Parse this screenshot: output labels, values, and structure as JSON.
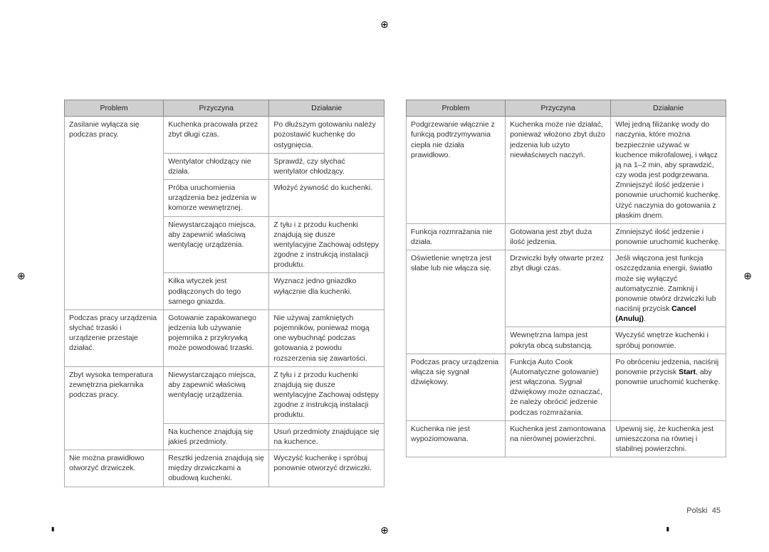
{
  "crop_glyph": "⊕",
  "headers": {
    "c1": "Problem",
    "c2": "Przyczyna",
    "c3": "Działanie"
  },
  "left_table": [
    {
      "problem": "Zasilanie wyłącza się podczas pracy.",
      "rows": [
        {
          "cause": "Kuchenka pracowała przez zbyt długi czas.",
          "action": "Po dłuższym gotowaniu należy pozostawić kuchenkę do ostygnięcia."
        },
        {
          "cause": "Wentylator chłodzący nie działa.",
          "action": "Sprawdź, czy słychać wentylator chłodzący."
        },
        {
          "cause": "Próba uruchomienia urządzenia bez jedzenia w komorze wewnętrznej.",
          "action": "Włożyć żywność do kuchenki."
        },
        {
          "cause": "Niewystarczająco miejsca, aby zapewnić właściwą wentylację urządzenia.",
          "action": "Z tyłu i z przodu kuchenki znajdują się dusze wentylacyjne Zachowaj odstępy zgodne z instrukcją instalacji produktu."
        },
        {
          "cause": "Kilka wtyczek jest podłączonych do tego samego gniazda.",
          "action": "Wyznacz jedno gniazdko wyłącznie dla kuchenki."
        }
      ]
    },
    {
      "problem": "Podczas pracy urządzenia słychać trzaski i urządzenie przestaje działać.",
      "rows": [
        {
          "cause": "Gotowanie zapakowanego jedzenia lub używanie pojemnika z przykrywką może powodować trzaski.",
          "action": "Nie używaj zamkniętych pojemników, ponieważ mogą one wybuchnąć podczas gotowania z powodu rozszerzenia się zawartości."
        }
      ]
    },
    {
      "problem": "Zbyt wysoka temperatura zewnętrzna piekarnika podczas pracy.",
      "rows": [
        {
          "cause": "Niewystarczająco miejsca, aby zapewnić właściwą wentylację urządzenia.",
          "action": "Z tyłu i z przodu kuchenki znajdują się dusze wentylacyjne Zachowaj odstępy zgodne z instrukcją instalacji produktu."
        },
        {
          "cause": "Na kuchence znajdują się jakieś przedmioty.",
          "action": "Usuń przedmioty znajdujące się na kuchence."
        }
      ]
    },
    {
      "problem": "Nie można prawidłowo otworzyć drzwiczek.",
      "rows": [
        {
          "cause": "Resztki jedzenia znajdują się między drzwiczkami a obudową kuchenki.",
          "action": "Wyczyść kuchenkę i spróbuj ponownie otworzyć drzwiczki."
        }
      ]
    }
  ],
  "right_table": [
    {
      "problem": "Podgrzewanie włącznie z funkcją podtrzymywania ciepła nie działa prawidłowo.",
      "rows": [
        {
          "cause": "Kuchenka może nie działać, ponieważ włożono zbyt dużo jedzenia lub użyto niewłaściwych naczyń.",
          "action": "Wlej jedną filiżankę wody do naczynia, które można bezpiecznie używać w kuchence mikrofalowej, i włącz ją na 1–2 min, aby sprawdzić, czy woda jest podgrzewana. Zmniejszyć ilość jedzenie i ponownie uruchomić kuchenkę. Użyć naczynia do gotowania z płaskim dnem."
        }
      ]
    },
    {
      "problem": "Funkcja rozmrażania nie działa.",
      "rows": [
        {
          "cause": "Gotowana jest zbyt duża ilość jedzenia.",
          "action": "Zmniejszyć ilość jedzenie i ponownie uruchomić kuchenkę."
        }
      ]
    },
    {
      "problem": "Oświetlenie wnętrza jest słabe lub nie włącza się.",
      "rows": [
        {
          "cause": "Drzwiczki były otwarte przez zbyt długi czas.",
          "action_html": "Jeśli włączona jest funkcja oszczędzania energii, światło może się wyłączyć automatycznie. Zamknij i ponownie otwórz drzwiczki lub naciśnij przycisk <strong class=\"bold\">Cancel (Anuluj)</strong>."
        },
        {
          "cause": "Wewnętrzna lampa jest pokryta obcą substancją.",
          "action": "Wyczyść wnętrze kuchenki i spróbuj ponownie."
        }
      ]
    },
    {
      "problem": "Podczas pracy urządzenia włącza się sygnał dźwiękowy.",
      "rows": [
        {
          "cause": "Funkcja Auto Cook (Automatyczne gotowanie) jest włączona. Sygnał dźwiękowy może oznaczać, że należy obrócić jedzenie podczas rozmrażania.",
          "action_html": "Po obróceniu jedzenia, naciśnij ponownie przycisk <strong class=\"bold\">Start</strong>, aby ponownie uruchomić kuchenkę."
        }
      ]
    },
    {
      "problem": "Kuchenka nie jest wypoziomowana.",
      "rows": [
        {
          "cause": "Kuchenka jest zamontowana na nierównej powierzchni.",
          "action": "Upewnij się, że kuchenka jest umieszczona na równej i stabilnej powierzchni."
        }
      ]
    }
  ],
  "footer": {
    "lang": "Polski",
    "page": "45"
  }
}
